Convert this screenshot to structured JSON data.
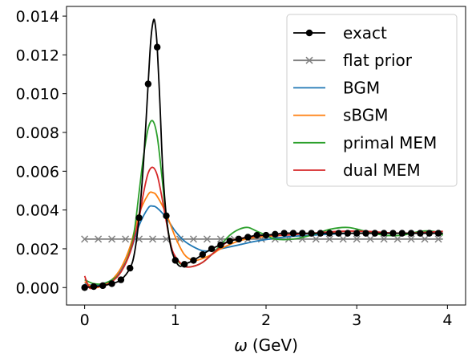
{
  "chart_data": {
    "type": "line",
    "title": "",
    "xlabel_symbol": "ω",
    "xlabel_unit": "(GeV)",
    "ylabel": "",
    "xlim": [
      -0.2,
      4.2
    ],
    "ylim": [
      -0.0009,
      0.0145
    ],
    "xticks": [
      0,
      1,
      2,
      3,
      4
    ],
    "xtick_labels": [
      "0",
      "1",
      "2",
      "3",
      "4"
    ],
    "yticks": [
      0.0,
      0.002,
      0.004,
      0.006,
      0.008,
      0.01,
      0.012,
      0.014
    ],
    "ytick_labels": [
      "0.000",
      "0.002",
      "0.004",
      "0.006",
      "0.008",
      "0.010",
      "0.012",
      "0.014"
    ],
    "grid": false,
    "legend_position": "top-right",
    "series": [
      {
        "name": "exact",
        "color": "#000000",
        "marker": "filled-circle",
        "marker_every": 0.1,
        "x": [
          0,
          0.1,
          0.2,
          0.3,
          0.4,
          0.5,
          0.55,
          0.6,
          0.65,
          0.7,
          0.73,
          0.76,
          0.78,
          0.8,
          0.83,
          0.86,
          0.9,
          0.95,
          1.0,
          1.05,
          1.1,
          1.2,
          1.3,
          1.4,
          1.5,
          1.6,
          1.7,
          1.8,
          1.9,
          2.0,
          2.2,
          2.4,
          2.6,
          2.8,
          3.0,
          3.2,
          3.4,
          3.6,
          3.8,
          3.95
        ],
        "y": [
          0.0,
          5e-05,
          0.0001,
          0.0002,
          0.0004,
          0.001,
          0.0018,
          0.0036,
          0.0065,
          0.0105,
          0.0128,
          0.0138,
          0.0135,
          0.0124,
          0.0095,
          0.0062,
          0.0037,
          0.0021,
          0.0014,
          0.0011,
          0.0012,
          0.0014,
          0.0017,
          0.002,
          0.0022,
          0.0024,
          0.0025,
          0.0026,
          0.0027,
          0.0027,
          0.0028,
          0.0028,
          0.0028,
          0.0028,
          0.0028,
          0.0028,
          0.0028,
          0.0028,
          0.0028,
          0.0028
        ]
      },
      {
        "name": "flat prior",
        "color": "#808080",
        "marker": "x",
        "marker_every": 0.15,
        "x": [
          0,
          3.95
        ],
        "y": [
          0.0025,
          0.0025
        ]
      },
      {
        "name": "BGM",
        "color": "#1f77b4",
        "x": [
          0,
          0.1,
          0.2,
          0.3,
          0.4,
          0.5,
          0.6,
          0.7,
          0.75,
          0.8,
          0.9,
          1.0,
          1.1,
          1.2,
          1.3,
          1.4,
          1.5,
          1.7,
          1.9,
          2.2,
          2.5,
          3.0,
          3.5,
          3.95
        ],
        "y": [
          0.0002,
          0.0001,
          0.0002,
          0.0004,
          0.0009,
          0.0018,
          0.0032,
          0.0041,
          0.0042,
          0.0041,
          0.0036,
          0.0029,
          0.0024,
          0.0021,
          0.0019,
          0.0019,
          0.002,
          0.0022,
          0.0024,
          0.0026,
          0.0027,
          0.0028,
          0.0028,
          0.0028
        ]
      },
      {
        "name": "sBGM",
        "color": "#ff7f0e",
        "x": [
          0,
          0.1,
          0.2,
          0.3,
          0.4,
          0.5,
          0.6,
          0.7,
          0.75,
          0.8,
          0.9,
          1.0,
          1.1,
          1.2,
          1.3,
          1.4,
          1.5,
          1.7,
          1.9,
          2.2,
          2.5,
          3.0,
          3.5,
          3.95
        ],
        "y": [
          0.0003,
          0.0,
          0.0001,
          0.0004,
          0.001,
          0.0021,
          0.0038,
          0.0048,
          0.0049,
          0.0047,
          0.0038,
          0.0026,
          0.0017,
          0.0014,
          0.0015,
          0.0017,
          0.002,
          0.0024,
          0.0026,
          0.0027,
          0.0028,
          0.0028,
          0.0028,
          0.0028
        ]
      },
      {
        "name": "primal MEM",
        "color": "#2ca02c",
        "x": [
          0,
          0.1,
          0.2,
          0.3,
          0.4,
          0.5,
          0.55,
          0.6,
          0.65,
          0.7,
          0.75,
          0.8,
          0.85,
          0.9,
          0.95,
          1.0,
          1.1,
          1.2,
          1.3,
          1.4,
          1.5,
          1.6,
          1.7,
          1.8,
          1.9,
          2.0,
          2.1,
          2.3,
          2.5,
          2.7,
          2.9,
          3.1,
          3.3,
          3.5,
          3.7,
          3.85,
          3.95
        ],
        "y": [
          0.0004,
          0.0002,
          0.0002,
          0.0004,
          0.0008,
          0.0019,
          0.003,
          0.0049,
          0.0068,
          0.0082,
          0.0086,
          0.0078,
          0.0058,
          0.0036,
          0.0022,
          0.0015,
          0.0011,
          0.0011,
          0.0013,
          0.0017,
          0.0022,
          0.0027,
          0.003,
          0.0031,
          0.0029,
          0.0027,
          0.0025,
          0.0025,
          0.0027,
          0.003,
          0.0031,
          0.0029,
          0.0027,
          0.0027,
          0.0029,
          0.0029,
          0.0027
        ]
      },
      {
        "name": "dual MEM",
        "color": "#d62728",
        "x": [
          0,
          0.05,
          0.1,
          0.2,
          0.3,
          0.4,
          0.5,
          0.6,
          0.65,
          0.7,
          0.75,
          0.8,
          0.85,
          0.9,
          0.95,
          1.0,
          1.1,
          1.2,
          1.3,
          1.4,
          1.5,
          1.6,
          1.8,
          2.0,
          2.2,
          2.5,
          2.8,
          3.1,
          3.5,
          3.95
        ],
        "y": [
          0.0006,
          0.0,
          0.0,
          0.0001,
          0.0003,
          0.0008,
          0.0018,
          0.0036,
          0.0049,
          0.0059,
          0.0062,
          0.0058,
          0.0047,
          0.0034,
          0.0022,
          0.0016,
          0.0011,
          0.0011,
          0.0013,
          0.0017,
          0.0021,
          0.0024,
          0.0026,
          0.0027,
          0.0027,
          0.0028,
          0.0029,
          0.0029,
          0.0028,
          0.0029
        ]
      }
    ]
  }
}
